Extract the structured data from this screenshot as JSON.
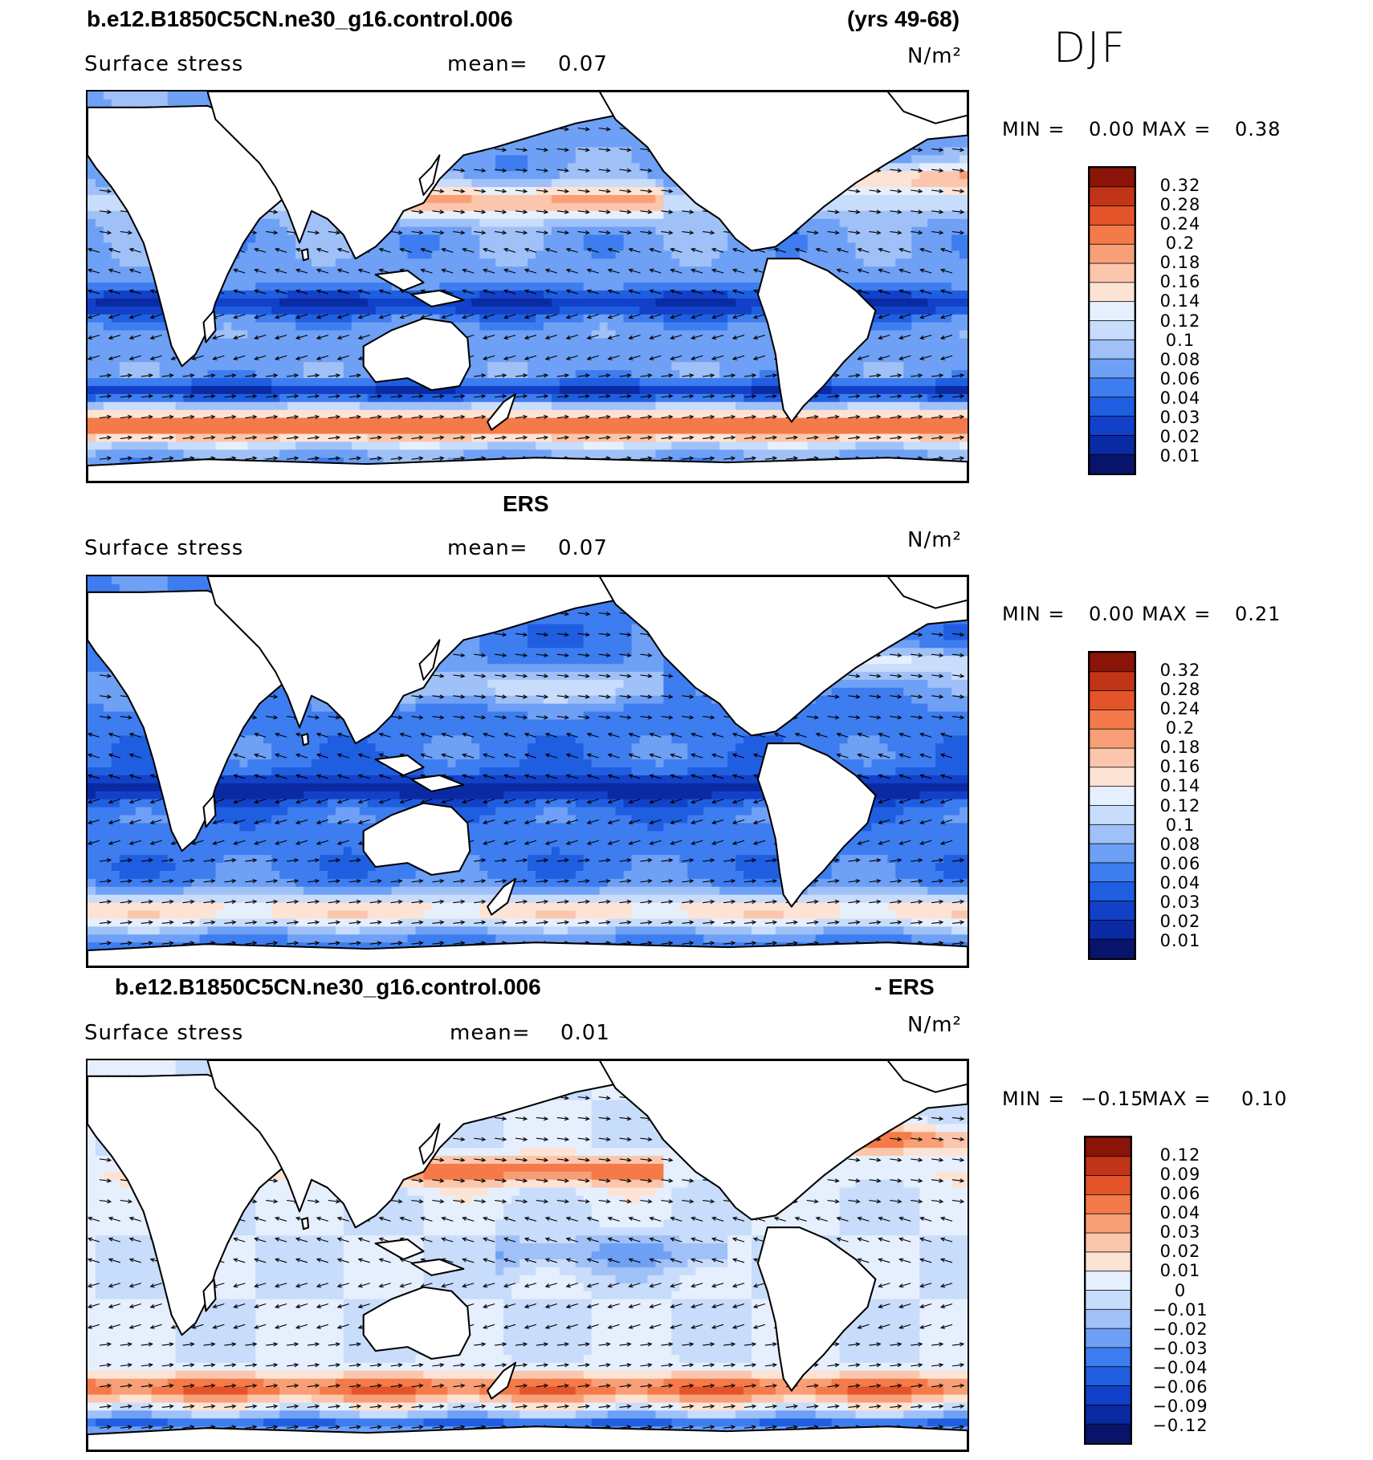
{
  "season": "DJF",
  "unit_label": "N/m²",
  "field_label": "Surface stress",
  "mean_label": "mean=",
  "min_label": "MIN =",
  "max_label": "MAX =",
  "colors": {
    "seq": [
      "#08136b",
      "#0a2aa3",
      "#1240c8",
      "#1f5ee0",
      "#3d7df0",
      "#6ea0f5",
      "#9fc1f8",
      "#c8dcfb",
      "#e6effd",
      "#fde3d3",
      "#fbc6ab",
      "#f89f77",
      "#f47a49",
      "#e4542a",
      "#c23418",
      "#8b1409"
    ],
    "diff": [
      "#08136b",
      "#0a2aa3",
      "#1240c8",
      "#1f5ee0",
      "#3d7df0",
      "#6ea0f5",
      "#9fc1f8",
      "#c8dcfb",
      "#e6effd",
      "#fde3d3",
      "#fbc6ab",
      "#f89f77",
      "#f47a49",
      "#e4542a",
      "#c23418",
      "#8b1409"
    ],
    "land": "#ffffff",
    "coast": "#000000"
  },
  "panels": [
    {
      "title_left": "b.e12.B1850C5CN.ne30_g16.control.006",
      "title_right": "(yrs 49-68)",
      "mean": "0.07",
      "min": "0.00",
      "max": "0.38",
      "colorbar": [
        "0.32",
        "0.28",
        "0.24",
        "0.2",
        "0.18",
        "0.16",
        "0.14",
        "0.12",
        "0.1",
        "0.08",
        "0.06",
        "0.04",
        "0.03",
        "0.02",
        "0.01"
      ],
      "kind": "model"
    },
    {
      "title_left": "",
      "title_center": "ERS",
      "mean": "0.07",
      "min": "0.00",
      "max": "0.21",
      "colorbar": [
        "0.32",
        "0.28",
        "0.24",
        "0.2",
        "0.18",
        "0.16",
        "0.14",
        "0.12",
        "0.1",
        "0.08",
        "0.06",
        "0.04",
        "0.03",
        "0.02",
        "0.01"
      ],
      "kind": "obs"
    },
    {
      "title_left": "b.e12.B1850C5CN.ne30_g16.control.006",
      "title_right": "- ERS",
      "mean": "0.01",
      "min": "−0.15",
      "max": "0.10",
      "colorbar": [
        "0.12",
        "0.09",
        "0.06",
        "0.04",
        "0.03",
        "0.02",
        "0.01",
        "0",
        "−0.01",
        "−0.02",
        "−0.03",
        "−0.04",
        "−0.06",
        "−0.09",
        "−0.12"
      ],
      "kind": "diff"
    }
  ]
}
